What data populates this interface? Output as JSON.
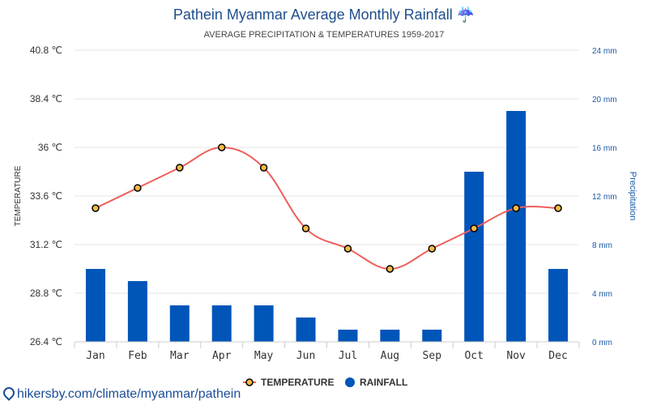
{
  "title": "Pathein Myanmar Average Monthly Rainfall ☔",
  "subtitle": "AVERAGE PRECIPITATION & TEMPERATURES 1959-2017",
  "source": "hikersby.com/climate/myanmar/pathein",
  "colors": {
    "temperature_line": "#ee5f5b",
    "temperature_marker": "#f5b942",
    "rainfall_bar": "#0055b8",
    "title": "#1f4e8c",
    "right_axis": "#1a5aa6"
  },
  "chart_data": {
    "type": "bar",
    "categories": [
      "Jan",
      "Feb",
      "Mar",
      "Apr",
      "May",
      "Jun",
      "Jul",
      "Aug",
      "Sep",
      "Oct",
      "Nov",
      "Dec"
    ],
    "series": [
      {
        "name": "TEMPERATURE",
        "type": "line",
        "axis": "left",
        "unit": "°C",
        "values": [
          33,
          34,
          35,
          36,
          35,
          32,
          31,
          30,
          31,
          32,
          33,
          33
        ]
      },
      {
        "name": "RAINFALL",
        "type": "bar",
        "axis": "right",
        "unit": "mm",
        "values": [
          6,
          5,
          3,
          3,
          3,
          2,
          1,
          1,
          1,
          14,
          19,
          6
        ]
      }
    ],
    "y_left": {
      "label": "TEMPERATURE",
      "ticks": [
        "40.8 ℃",
        "38.4 ℃",
        "36 ℃",
        "33.6 ℃",
        "31.2 ℃",
        "28.8 ℃",
        "26.4 ℃"
      ],
      "range": [
        26.4,
        40.8
      ]
    },
    "y_right": {
      "label": "Precipitation",
      "ticks": [
        "24 mm",
        "20 mm",
        "16 mm",
        "12 mm",
        "8 mm",
        "4 mm",
        "0 mm"
      ],
      "range": [
        0,
        24
      ]
    },
    "legend": [
      "TEMPERATURE",
      "RAINFALL"
    ],
    "legend_position": "bottom",
    "grid": true
  }
}
